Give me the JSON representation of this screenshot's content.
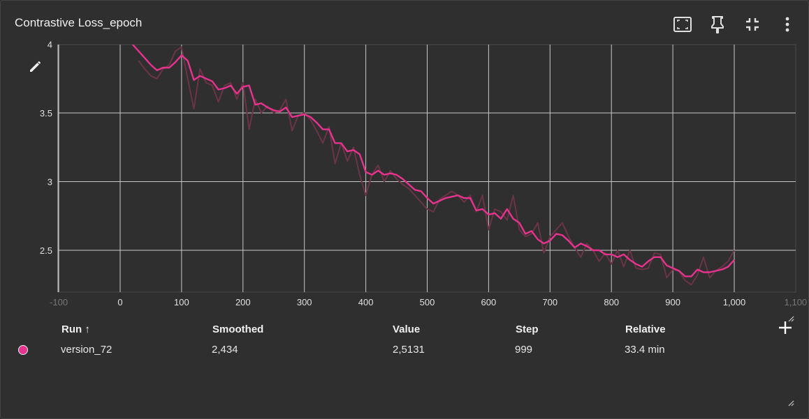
{
  "card": {
    "title": "Contrastive Loss_epoch"
  },
  "toolbar": {
    "icons": [
      "fit-domain-icon",
      "pin-icon",
      "collapse-icon",
      "more-vert-icon"
    ]
  },
  "colors": {
    "background": "#2f2f2f",
    "grid": "#c8c8c8",
    "smoothed": "#e5338e",
    "raw": "#6b3446"
  },
  "table": {
    "headers": {
      "run": "Run ↑",
      "smoothed": "Smoothed",
      "value": "Value",
      "step": "Step",
      "relative": "Relative"
    },
    "row": {
      "run": "version_72",
      "smoothed": "2,434",
      "value": "2,5131",
      "step": "999",
      "relative": "33.4 min"
    }
  },
  "chart_data": {
    "type": "line",
    "title": "Contrastive Loss_epoch",
    "xlim": [
      -100,
      1100
    ],
    "ylim": [
      2.2,
      4
    ],
    "x_ticks": [
      -100,
      0,
      100,
      200,
      300,
      400,
      500,
      600,
      700,
      800,
      900,
      1000,
      1100
    ],
    "x_tick_labels": [
      "-100",
      "0",
      "100",
      "200",
      "300",
      "400",
      "500",
      "600",
      "700",
      "800",
      "900",
      "1,000",
      "1,100"
    ],
    "y_ticks": [
      2.5,
      3,
      3.5,
      4
    ],
    "y_tick_labels": [
      "2.5",
      "3",
      "3.5",
      "4"
    ],
    "grid": true,
    "series": [
      {
        "role": "raw",
        "x": [
          30,
          40,
          50,
          60,
          70,
          80,
          90,
          100,
          110,
          120,
          130,
          140,
          150,
          160,
          170,
          180,
          190,
          200,
          210,
          220,
          230,
          240,
          250,
          260,
          270,
          280,
          290,
          300,
          310,
          320,
          330,
          340,
          350,
          360,
          370,
          380,
          390,
          400,
          410,
          420,
          430,
          440,
          450,
          460,
          470,
          480,
          490,
          500,
          510,
          520,
          530,
          540,
          550,
          560,
          570,
          580,
          590,
          600,
          610,
          620,
          630,
          640,
          650,
          660,
          670,
          680,
          690,
          700,
          710,
          720,
          730,
          740,
          750,
          760,
          770,
          780,
          790,
          800,
          810,
          820,
          830,
          840,
          850,
          860,
          870,
          880,
          890,
          900,
          910,
          920,
          930,
          940,
          950,
          960,
          970,
          980,
          990,
          1000
        ],
        "y": [
          3.88,
          3.82,
          3.77,
          3.75,
          3.82,
          3.85,
          3.95,
          3.98,
          3.75,
          3.53,
          3.82,
          3.72,
          3.7,
          3.58,
          3.7,
          3.72,
          3.6,
          3.72,
          3.38,
          3.6,
          3.5,
          3.55,
          3.5,
          3.52,
          3.6,
          3.37,
          3.48,
          3.5,
          3.45,
          3.37,
          3.28,
          3.4,
          3.13,
          3.28,
          3.15,
          3.25,
          3.05,
          2.9,
          3.05,
          3.12,
          3,
          3.08,
          3.02,
          2.98,
          2.95,
          2.9,
          2.85,
          2.8,
          2.78,
          2.87,
          2.9,
          2.93,
          2.9,
          2.85,
          2.9,
          2.78,
          2.9,
          2.65,
          2.8,
          2.78,
          2.72,
          2.9,
          2.65,
          2.6,
          2.62,
          2.7,
          2.48,
          2.6,
          2.65,
          2.7,
          2.6,
          2.52,
          2.45,
          2.55,
          2.5,
          2.42,
          2.48,
          2.4,
          2.5,
          2.38,
          2.5,
          2.37,
          2.36,
          2.37,
          2.48,
          2.47,
          2.3,
          2.36,
          2.35,
          2.28,
          2.25,
          2.32,
          2.45,
          2.3,
          2.35,
          2.38,
          2.42,
          2.5
        ]
      },
      {
        "role": "smoothed",
        "x": [
          20,
          30,
          40,
          50,
          60,
          70,
          80,
          90,
          100,
          110,
          120,
          130,
          140,
          150,
          160,
          170,
          180,
          190,
          200,
          210,
          220,
          230,
          240,
          250,
          260,
          270,
          280,
          290,
          300,
          310,
          320,
          330,
          340,
          350,
          360,
          370,
          380,
          390,
          400,
          410,
          420,
          430,
          440,
          450,
          460,
          470,
          480,
          490,
          500,
          510,
          520,
          530,
          540,
          550,
          560,
          570,
          580,
          590,
          600,
          610,
          620,
          630,
          640,
          650,
          660,
          670,
          680,
          690,
          700,
          710,
          720,
          730,
          740,
          750,
          760,
          770,
          780,
          790,
          800,
          810,
          820,
          830,
          840,
          850,
          860,
          870,
          880,
          890,
          900,
          910,
          920,
          930,
          940,
          950,
          960,
          970,
          980,
          990,
          1000
        ],
        "y": [
          4.0,
          3.95,
          3.9,
          3.85,
          3.81,
          3.83,
          3.83,
          3.87,
          3.92,
          3.88,
          3.74,
          3.77,
          3.75,
          3.73,
          3.67,
          3.68,
          3.7,
          3.64,
          3.69,
          3.7,
          3.56,
          3.57,
          3.54,
          3.52,
          3.51,
          3.54,
          3.47,
          3.48,
          3.49,
          3.47,
          3.43,
          3.38,
          3.38,
          3.28,
          3.28,
          3.22,
          3.23,
          3.2,
          3.07,
          3.05,
          3.08,
          3.05,
          3.06,
          3.05,
          3.02,
          2.98,
          2.94,
          2.93,
          2.88,
          2.84,
          2.86,
          2.88,
          2.89,
          2.9,
          2.88,
          2.88,
          2.79,
          2.8,
          2.76,
          2.77,
          2.73,
          2.8,
          2.73,
          2.7,
          2.62,
          2.64,
          2.58,
          2.55,
          2.57,
          2.62,
          2.61,
          2.57,
          2.52,
          2.55,
          2.53,
          2.5,
          2.5,
          2.47,
          2.47,
          2.45,
          2.47,
          2.43,
          2.4,
          2.38,
          2.42,
          2.45,
          2.45,
          2.39,
          2.37,
          2.35,
          2.31,
          2.31,
          2.36,
          2.34,
          2.34,
          2.35,
          2.36,
          2.38,
          2.43
        ]
      }
    ]
  }
}
